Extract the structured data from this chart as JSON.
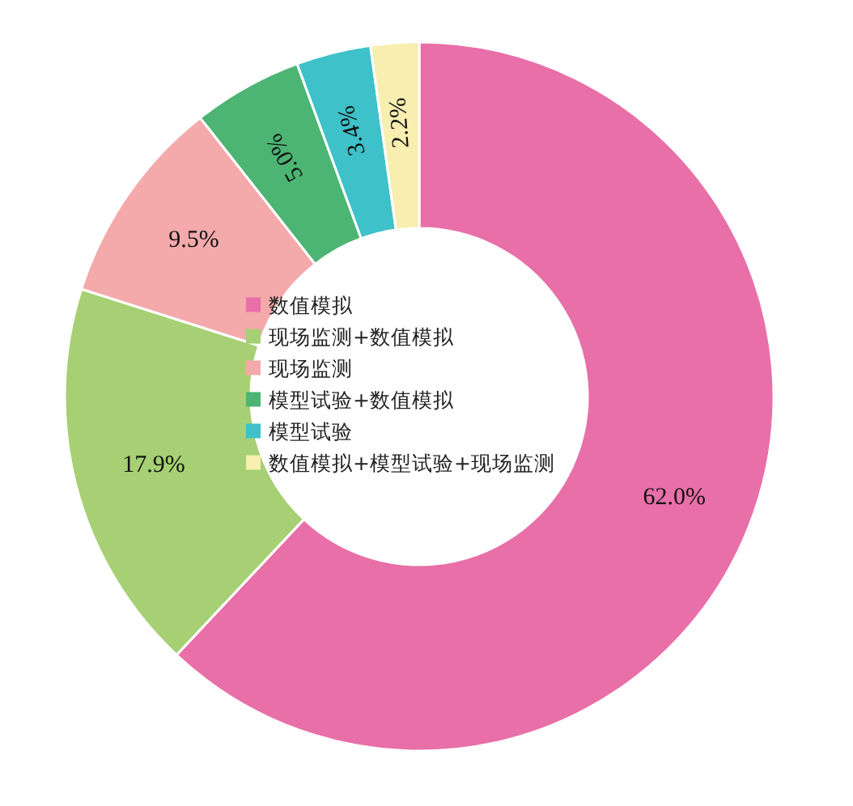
{
  "chart_data": {
    "type": "donut",
    "categories": [
      "数值模拟",
      "现场监测+数值模拟",
      "现场监测",
      "模型试验+数值模拟",
      "模型试验",
      "数值模拟+模型试验+现场监测"
    ],
    "values": [
      62.0,
      17.9,
      9.5,
      5.0,
      3.4,
      2.2
    ],
    "colors": [
      "#e86fa8",
      "#a6d073",
      "#f4a9ab",
      "#4cb573",
      "#3fc1c9",
      "#f7eeb0"
    ],
    "value_labels": [
      "62.0%",
      "17.9%",
      "9.5%",
      "5.0%",
      "3.4%",
      "2.2%"
    ],
    "legend": "center"
  }
}
